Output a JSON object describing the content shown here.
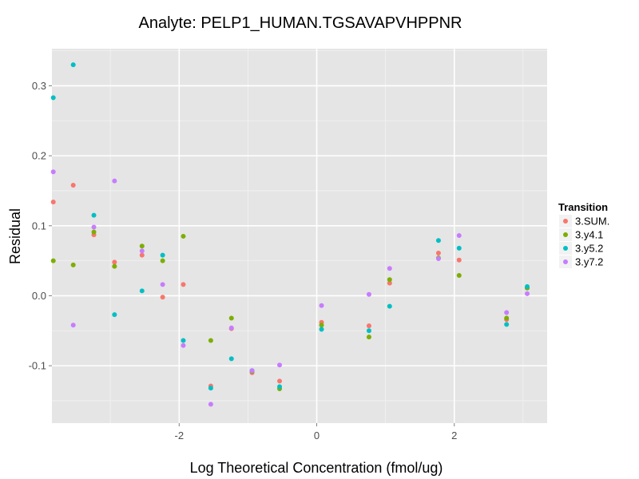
{
  "chart_data": {
    "type": "scatter",
    "title": "Analyte: PELP1_HUMAN.TGSAVAPVHPPNR",
    "xlabel": "Log Theoretical Concentration (fmol/ug)",
    "ylabel": "Residual",
    "xlim": [
      -3.85,
      3.35
    ],
    "ylim": [
      -0.182,
      0.353
    ],
    "x_ticks": [
      -2,
      0,
      2
    ],
    "x_tick_labels": [
      "-2",
      "0",
      "2"
    ],
    "y_ticks": [
      -0.1,
      0.0,
      0.1,
      0.2,
      0.3
    ],
    "y_tick_labels": [
      "-0.1",
      "0.0",
      "0.1",
      "0.2",
      "0.3"
    ],
    "grid": true,
    "legend": {
      "title": "Transition",
      "position": "right"
    },
    "series": [
      {
        "name": "3.SUM.",
        "color": "#F8766D",
        "x": [
          -3.83,
          -3.54,
          -3.24,
          -2.94,
          -2.54,
          -2.24,
          -1.94,
          -1.54,
          -1.24,
          -0.94,
          -0.54,
          0.07,
          0.76,
          1.06,
          1.77,
          2.07,
          2.76,
          3.06
        ],
        "y": [
          0.134,
          0.158,
          0.087,
          0.048,
          0.058,
          -0.002,
          0.016,
          -0.129,
          -0.047,
          -0.11,
          -0.122,
          -0.038,
          -0.043,
          0.018,
          0.061,
          0.051,
          -0.034,
          0.011
        ]
      },
      {
        "name": "3.y4.1",
        "color": "#7CAE00",
        "x": [
          -3.83,
          -3.54,
          -3.24,
          -2.94,
          -2.54,
          -2.24,
          -1.94,
          -1.54,
          -1.24,
          -0.94,
          -0.54,
          0.07,
          0.76,
          1.06,
          1.77,
          2.07,
          2.76,
          3.06
        ],
        "y": [
          0.05,
          0.044,
          0.091,
          0.042,
          0.071,
          0.05,
          0.085,
          -0.064,
          -0.032,
          -0.108,
          -0.133,
          -0.042,
          -0.059,
          0.023,
          0.054,
          0.029,
          -0.032,
          0.011
        ]
      },
      {
        "name": "3.y5.2",
        "color": "#00BFC4",
        "x": [
          -3.83,
          -3.54,
          -3.24,
          -2.94,
          -2.54,
          -2.24,
          -1.94,
          -1.54,
          -1.24,
          -0.94,
          -0.54,
          0.07,
          0.76,
          1.06,
          1.77,
          2.07,
          2.76,
          3.06
        ],
        "y": [
          0.283,
          0.33,
          0.115,
          -0.027,
          0.007,
          0.058,
          -0.064,
          -0.132,
          -0.09,
          -0.107,
          -0.13,
          -0.048,
          -0.05,
          -0.015,
          0.079,
          0.068,
          -0.041,
          0.013
        ]
      },
      {
        "name": "3.y7.2",
        "color": "#C77CFF",
        "x": [
          -3.83,
          -3.54,
          -3.24,
          -2.94,
          -2.54,
          -2.24,
          -1.94,
          -1.54,
          -1.24,
          -0.94,
          -0.54,
          0.07,
          0.76,
          1.06,
          1.77,
          2.07,
          2.76,
          3.06
        ],
        "y": [
          0.177,
          -0.042,
          0.098,
          0.164,
          0.064,
          0.016,
          -0.071,
          -0.155,
          -0.046,
          -0.107,
          -0.099,
          -0.014,
          0.002,
          0.039,
          0.053,
          0.086,
          -0.024,
          0.003
        ]
      }
    ]
  }
}
